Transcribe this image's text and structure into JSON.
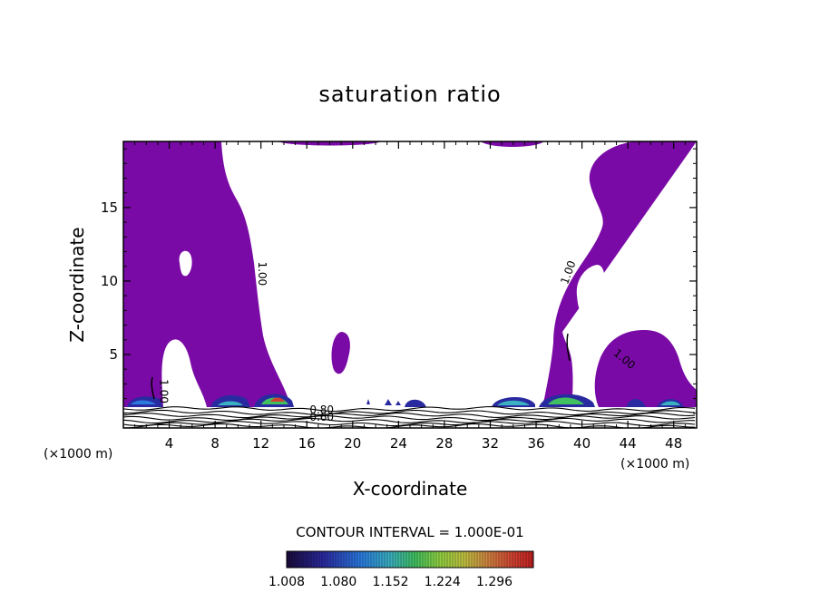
{
  "chart_data": {
    "type": "contour",
    "title": "saturation ratio",
    "xlabel": "X-coordinate",
    "ylabel": "Z-coordinate",
    "x_unit": "(×1000 m)",
    "y_unit": "(×1000 m)",
    "xlim": [
      0,
      50
    ],
    "ylim": [
      0,
      19.5
    ],
    "x_ticks": [
      4,
      8,
      12,
      16,
      20,
      24,
      28,
      32,
      36,
      40,
      44,
      48
    ],
    "y_ticks": [
      5,
      10,
      15
    ],
    "contour_interval_text": "CONTOUR INTERVAL = 1.000E-01",
    "colorbar": {
      "min": 1.008,
      "max": 1.35,
      "tick_values": [
        1.008,
        1.08,
        1.152,
        1.224,
        1.296
      ],
      "tick_labels": [
        "1.008",
        "1.080",
        "1.152",
        "1.224",
        "1.296"
      ],
      "colors": [
        "#1a0a3a",
        "#2a2aa0",
        "#2a7ae0",
        "#3ab0c0",
        "#40c060",
        "#90d040",
        "#c0c040",
        "#d08040",
        "#d04030",
        "#c02020"
      ]
    },
    "contour_labels": [
      {
        "text": "1.00",
        "x": 11.8,
        "z": 10.5
      },
      {
        "text": "1.00",
        "x": 39.1,
        "z": 10.5
      },
      {
        "text": "1.00",
        "x": 43.5,
        "z": 4.5
      },
      {
        "text": "1.00",
        "x": 3.2,
        "z": 2.5
      },
      {
        "text": "0.80",
        "x": 17.3,
        "z": 1.0
      },
      {
        "text": "0.60",
        "x": 17.3,
        "z": 0.5
      }
    ],
    "fill_color": "#7a0aa6"
  }
}
